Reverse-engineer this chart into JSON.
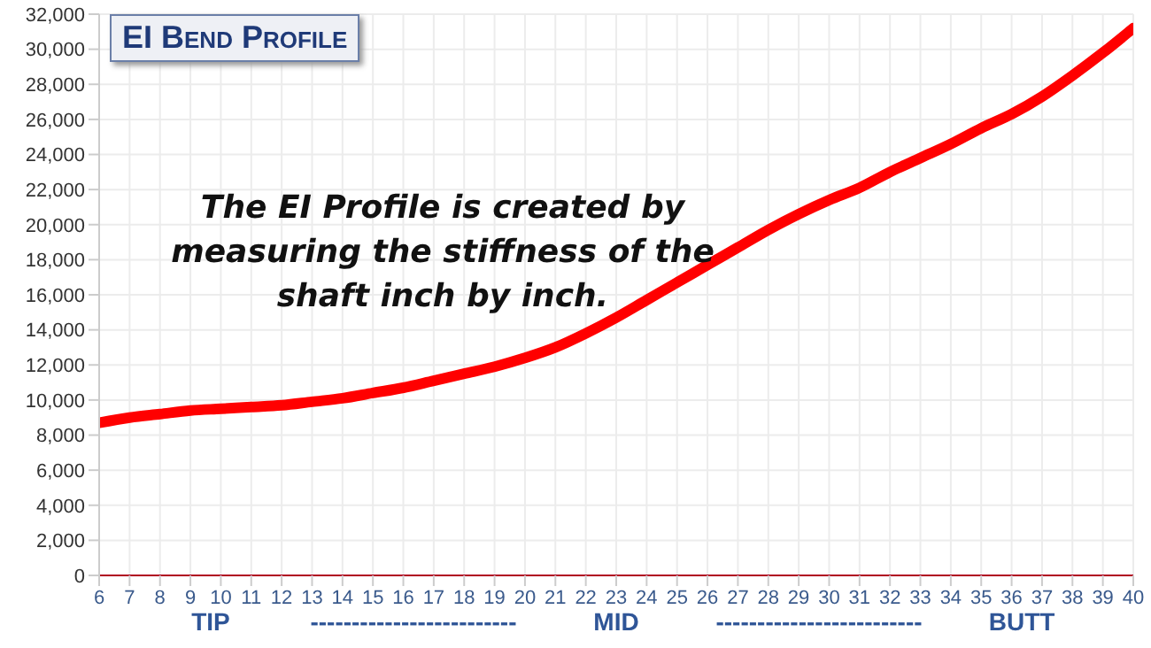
{
  "chart_data": {
    "type": "line",
    "title": "EI Bend Profile",
    "x": [
      6,
      7,
      8,
      9,
      10,
      11,
      12,
      13,
      14,
      15,
      16,
      17,
      18,
      19,
      20,
      21,
      22,
      23,
      24,
      25,
      26,
      27,
      28,
      29,
      30,
      31,
      32,
      33,
      34,
      35,
      36,
      37,
      38,
      39,
      40
    ],
    "series": [
      {
        "color": "#ff0000",
        "values": [
          8700,
          9000,
          9200,
          9400,
          9500,
          9600,
          9700,
          9900,
          10100,
          10400,
          10700,
          11100,
          11500,
          11900,
          12400,
          13000,
          13800,
          14700,
          15700,
          16700,
          17700,
          18700,
          19700,
          20600,
          21400,
          22100,
          23000,
          23800,
          24600,
          25500,
          26300,
          27300,
          28500,
          29800,
          31200
        ]
      }
    ],
    "xlim": [
      6,
      40
    ],
    "xticks": [
      6,
      7,
      8,
      9,
      10,
      11,
      12,
      13,
      14,
      15,
      16,
      17,
      18,
      19,
      20,
      21,
      22,
      23,
      24,
      25,
      26,
      27,
      28,
      29,
      30,
      31,
      32,
      33,
      34,
      35,
      36,
      37,
      38,
      39,
      40
    ],
    "ylim": [
      0,
      32000
    ],
    "yticks": [
      0,
      {
        "value": 2000,
        "label": "2,000"
      },
      {
        "value": 4000,
        "label": "4,000"
      },
      {
        "value": 6000,
        "label": "6,000"
      },
      {
        "value": 8000,
        "label": "8,000"
      },
      {
        "value": 10000,
        "label": "10,000"
      },
      {
        "value": 12000,
        "label": "12,000"
      },
      {
        "value": 14000,
        "label": "14,000"
      },
      {
        "value": 16000,
        "label": "16,000"
      },
      {
        "value": 18000,
        "label": "18,000"
      },
      {
        "value": 20000,
        "label": "20,000"
      },
      {
        "value": 22000,
        "label": "22,000"
      },
      {
        "value": 24000,
        "label": "24,000"
      },
      {
        "value": 26000,
        "label": "26,000"
      },
      {
        "value": 28000,
        "label": "28,000"
      },
      {
        "value": 30000,
        "label": "30,000"
      },
      {
        "value": 32000,
        "label": "32,000"
      }
    ],
    "grid": true,
    "marker": "none",
    "line_style": "solid",
    "annotations": [
      "The EI Profile is created by measuring the stiffness of the shaft inch by inch.",
      "TIP",
      "-------------------------",
      "MID",
      "-------------------------",
      "BUTT"
    ]
  }
}
